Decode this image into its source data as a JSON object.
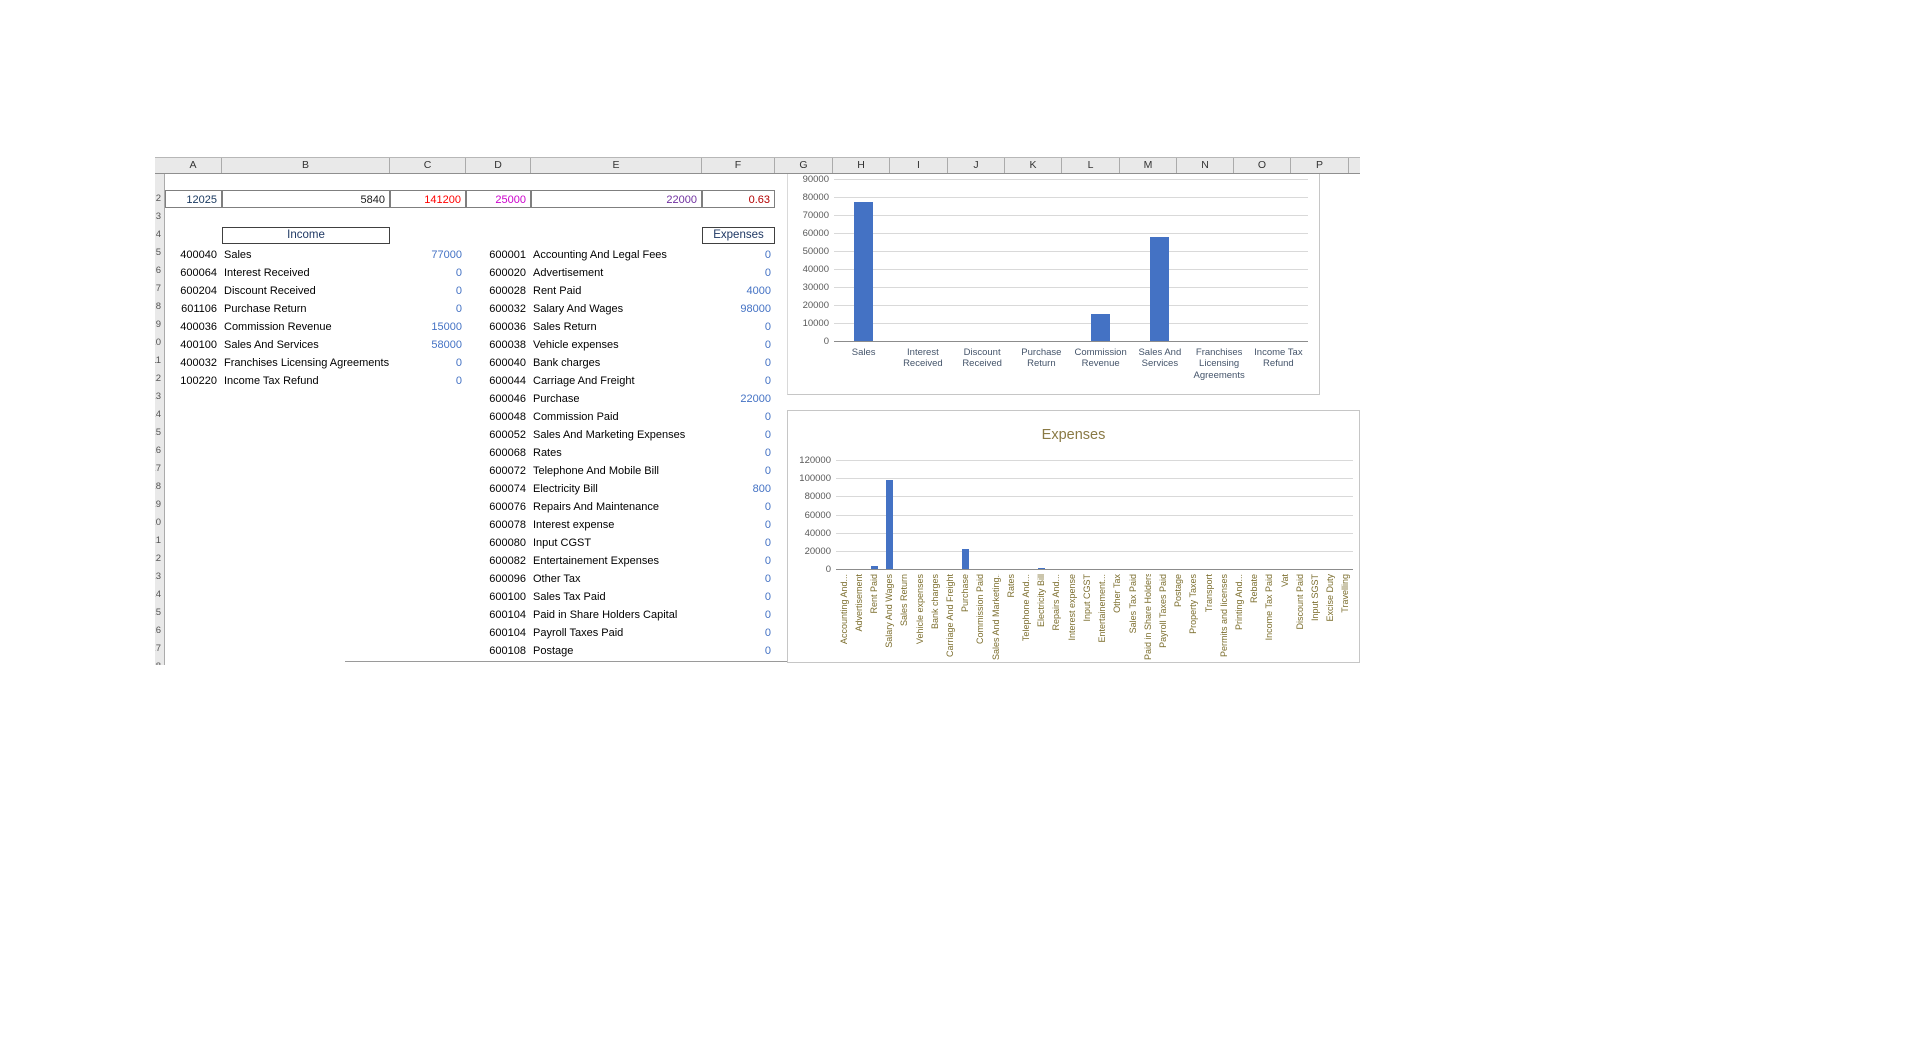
{
  "sheet": {
    "columns": [
      "A",
      "B",
      "C",
      "D",
      "E",
      "F",
      "G",
      "H",
      "I",
      "J",
      "K",
      "L",
      "M",
      "N",
      "O",
      "P"
    ],
    "row_strip": {
      "start": 2,
      "count": 27
    },
    "summary_row": [
      {
        "col": "A",
        "value": "12025",
        "color": "#17375E"
      },
      {
        "col": "B",
        "value": "5840",
        "color": "#1a1a1a"
      },
      {
        "col": "C",
        "value": "141200",
        "color": "#FF0000"
      },
      {
        "col": "D",
        "value": "25000",
        "color": "#CC00CC"
      },
      {
        "col": "E",
        "value": "22000",
        "color": "#7030A0"
      },
      {
        "col": "F",
        "value": "0.63",
        "color": "#B30000"
      }
    ],
    "income": {
      "title": "Income",
      "rows": [
        {
          "code": "400040",
          "name": "Sales",
          "value": "77000"
        },
        {
          "code": "600064",
          "name": "Interest Received",
          "value": "0"
        },
        {
          "code": "600204",
          "name": "Discount Received",
          "value": "0"
        },
        {
          "code": "601106",
          "name": "Purchase Return",
          "value": "0"
        },
        {
          "code": "400036",
          "name": "Commission Revenue",
          "value": "15000"
        },
        {
          "code": "400100",
          "name": "Sales And Services",
          "value": "58000"
        },
        {
          "code": "400032",
          "name": "Franchises Licensing Agreements",
          "value": "0"
        },
        {
          "code": "100220",
          "name": "Income Tax Refund",
          "value": "0"
        }
      ]
    },
    "expenses": {
      "title": "Expenses",
      "rows": [
        {
          "code": "600001",
          "name": "Accounting And Legal Fees",
          "value": "0"
        },
        {
          "code": "600020",
          "name": "Advertisement",
          "value": "0"
        },
        {
          "code": "600028",
          "name": "Rent Paid",
          "value": "4000"
        },
        {
          "code": "600032",
          "name": "Salary And Wages",
          "value": "98000"
        },
        {
          "code": "600036",
          "name": "Sales Return",
          "value": "0"
        },
        {
          "code": "600038",
          "name": "Vehicle expenses",
          "value": "0"
        },
        {
          "code": "600040",
          "name": "Bank charges",
          "value": "0"
        },
        {
          "code": "600044",
          "name": "Carriage And Freight",
          "value": "0"
        },
        {
          "code": "600046",
          "name": "Purchase",
          "value": "22000"
        },
        {
          "code": "600048",
          "name": "Commission Paid",
          "value": "0"
        },
        {
          "code": "600052",
          "name": "Sales And Marketing Expenses",
          "value": "0"
        },
        {
          "code": "600068",
          "name": "Rates",
          "value": "0"
        },
        {
          "code": "600072",
          "name": "Telephone And Mobile Bill",
          "value": "0"
        },
        {
          "code": "600074",
          "name": "Electricity Bill",
          "value": "800"
        },
        {
          "code": "600076",
          "name": "Repairs And Maintenance",
          "value": "0"
        },
        {
          "code": "600078",
          "name": "Interest expense",
          "value": "0"
        },
        {
          "code": "600080",
          "name": "Input CGST",
          "value": "0"
        },
        {
          "code": "600082",
          "name": "Entertainement Expenses",
          "value": "0"
        },
        {
          "code": "600096",
          "name": "Other Tax",
          "value": "0"
        },
        {
          "code": "600100",
          "name": "Sales Tax Paid",
          "value": "0"
        },
        {
          "code": "600104",
          "name": "Paid in Share Holders Capital",
          "value": "0"
        },
        {
          "code": "600104",
          "name": "Payroll Taxes Paid",
          "value": "0"
        },
        {
          "code": "600108",
          "name": "Postage",
          "value": "0"
        }
      ]
    },
    "amount_color": "#4472C4"
  },
  "chart_data": [
    {
      "type": "bar",
      "title": "",
      "categories": [
        "Sales",
        "Interest Received",
        "Discount Received",
        "Purchase Return",
        "Commission Revenue",
        "Sales And Services",
        "Franchises Licensing Agreements",
        "Income Tax Refund"
      ],
      "values": [
        77000,
        0,
        0,
        0,
        15000,
        58000,
        0,
        0
      ],
      "xlabel": "",
      "ylabel": "",
      "ylim": [
        0,
        90000
      ],
      "ytick_step": 10000,
      "bar_color": "#4472C4",
      "grid": true,
      "legend": "none"
    },
    {
      "type": "bar",
      "title": "Expenses",
      "categories": [
        "Accounting And...",
        "Advertisement",
        "Rent Paid",
        "Salary And Wages",
        "Sales Return",
        "Vehicle expenses",
        "Bank charges",
        "Carriage And Freight",
        "Purchase",
        "Commission Paid",
        "Sales And Marketing...",
        "Rates",
        "Telephone And...",
        "Electricity Bill",
        "Repairs And...",
        "Interest expense",
        "Input CGST",
        "Entertainement...",
        "Other Tax",
        "Sales Tax Paid",
        "Paid in Share Holders...",
        "Payroll Taxes Paid",
        "Postage",
        "Property Taxes",
        "Transport",
        "Permits and licenses",
        "Printing And...",
        "Rebate",
        "Income Tax Paid",
        "Vat",
        "Discount Paid",
        "Input SGST",
        "Excise Duty",
        "Travelling"
      ],
      "values": [
        0,
        0,
        4000,
        98000,
        0,
        0,
        0,
        0,
        22000,
        0,
        0,
        0,
        0,
        800,
        0,
        0,
        0,
        0,
        0,
        0,
        0,
        0,
        0,
        0,
        0,
        0,
        0,
        0,
        0,
        0,
        0,
        0,
        0,
        0
      ],
      "xlabel": "",
      "ylabel": "",
      "ylim": [
        0,
        120000
      ],
      "ytick_step": 20000,
      "bar_color": "#4472C4",
      "grid": true,
      "legend": "none"
    }
  ]
}
